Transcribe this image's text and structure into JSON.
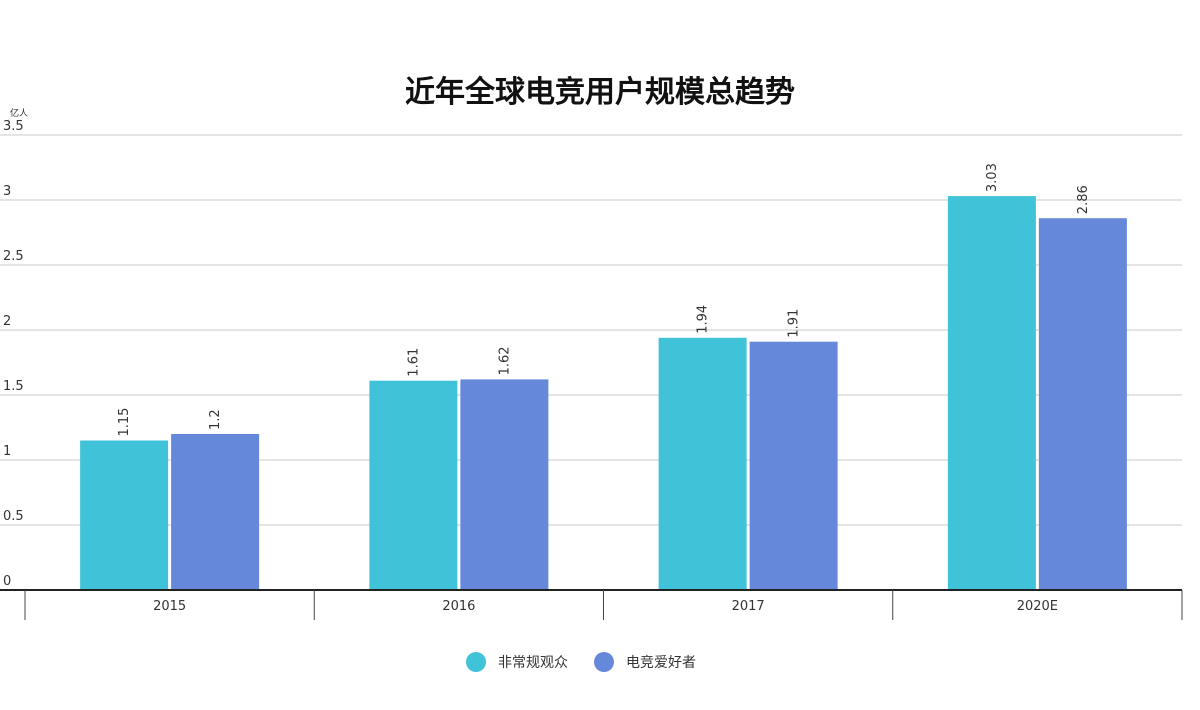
{
  "chart_data": {
    "type": "bar",
    "title": "近年全球电竞用户规模总趋势",
    "unit": "亿人",
    "categories": [
      "2015",
      "2016",
      "2017",
      "2020E"
    ],
    "series": [
      {
        "name": "非常规观众",
        "values": [
          1.15,
          1.61,
          1.94,
          3.03
        ],
        "color": "#40C2D8"
      },
      {
        "name": "电竞爱好者",
        "values": [
          1.2,
          1.62,
          1.91,
          2.86
        ],
        "color": "#6688DB"
      }
    ],
    "yticks": [
      "0",
      "0.5",
      "1",
      "1.5",
      "2",
      "2.5",
      "3",
      "3.5"
    ],
    "ylim": [
      0,
      3.5
    ],
    "grid": true,
    "legend": "bottom-center"
  }
}
